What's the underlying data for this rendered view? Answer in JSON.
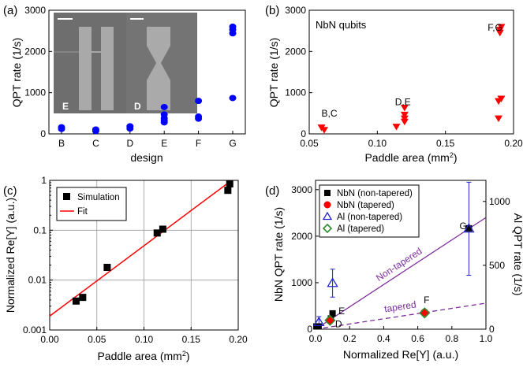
{
  "chart_data": [
    {
      "panel": "(a)",
      "type": "scatter",
      "xlabel": "design",
      "ylabel": "QPT rate (1/s)",
      "categories": [
        "B",
        "C",
        "D",
        "E",
        "F",
        "G"
      ],
      "ylim": [
        0,
        3000
      ],
      "yticks": [
        0,
        1000,
        2000,
        3000
      ],
      "color": "#0000ff",
      "points": [
        {
          "x": "B",
          "y": 120
        },
        {
          "x": "B",
          "y": 160
        },
        {
          "x": "C",
          "y": 70
        },
        {
          "x": "C",
          "y": 105
        },
        {
          "x": "D",
          "y": 130
        },
        {
          "x": "D",
          "y": 185
        },
        {
          "x": "E",
          "y": 280
        },
        {
          "x": "E",
          "y": 330
        },
        {
          "x": "E",
          "y": 380
        },
        {
          "x": "E",
          "y": 470
        },
        {
          "x": "E",
          "y": 650
        },
        {
          "x": "F",
          "y": 370
        },
        {
          "x": "F",
          "y": 420
        },
        {
          "x": "F",
          "y": 800
        },
        {
          "x": "G",
          "y": 870
        },
        {
          "x": "G",
          "y": 2440
        },
        {
          "x": "G",
          "y": 2530
        },
        {
          "x": "G",
          "y": 2600
        }
      ],
      "inset_labels": [
        "E",
        "D"
      ]
    },
    {
      "panel": "(b)",
      "type": "scatter",
      "xlabel": "Paddle area (mm²)",
      "ylabel": "QPT rate (1/s)",
      "annotation_title": "NbN qubits",
      "xlim": [
        0.05,
        0.2
      ],
      "xticks": [
        0.05,
        0.1,
        0.15,
        0.2
      ],
      "ylim": [
        0,
        3000
      ],
      "yticks": [
        0,
        1000,
        2000,
        3000
      ],
      "color": "#ff0000",
      "points": [
        {
          "x": 0.059,
          "y": 160
        },
        {
          "x": 0.061,
          "y": 100
        },
        {
          "x": 0.114,
          "y": 180
        },
        {
          "x": 0.12,
          "y": 300
        },
        {
          "x": 0.12,
          "y": 380
        },
        {
          "x": 0.12,
          "y": 470
        },
        {
          "x": 0.12,
          "y": 640
        },
        {
          "x": 0.189,
          "y": 380
        },
        {
          "x": 0.189,
          "y": 800
        },
        {
          "x": 0.191,
          "y": 860
        },
        {
          "x": 0.19,
          "y": 2460
        },
        {
          "x": 0.19,
          "y": 2530
        },
        {
          "x": 0.191,
          "y": 2600
        }
      ],
      "annotations": [
        {
          "text": "B,C",
          "x": 0.059,
          "y": 420
        },
        {
          "text": "D,E",
          "x": 0.113,
          "y": 700
        },
        {
          "text": "F,G",
          "x": 0.181,
          "y": 2500
        }
      ]
    },
    {
      "panel": "(c)",
      "type": "scatter",
      "xlabel": "Paddle area (mm²)",
      "ylabel": "Normalized Re[Y] (a.u.)",
      "xlim": [
        0.0,
        0.2
      ],
      "xticks": [
        "0.00",
        "0.05",
        "0.10",
        "0.15",
        "0.20"
      ],
      "ylim": [
        0.001,
        1
      ],
      "yscale": "log",
      "yticks": [
        "0.001",
        "0.01",
        "0.1",
        "1"
      ],
      "grid": true,
      "legend": [
        {
          "label": "Simulation",
          "marker": "square",
          "color": "#000000"
        },
        {
          "label": "Fit",
          "marker": "line",
          "color": "#ff0000"
        }
      ],
      "simulation": [
        {
          "x": 0.028,
          "y": 0.0038
        },
        {
          "x": 0.035,
          "y": 0.0045
        },
        {
          "x": 0.061,
          "y": 0.018
        },
        {
          "x": 0.114,
          "y": 0.088
        },
        {
          "x": 0.12,
          "y": 0.105
        },
        {
          "x": 0.189,
          "y": 0.63
        },
        {
          "x": 0.191,
          "y": 0.85
        }
      ],
      "fit": [
        {
          "x": 0.0,
          "y": 0.0019
        },
        {
          "x": 0.193,
          "y": 1.0
        }
      ]
    },
    {
      "panel": "(d)",
      "type": "scatter",
      "xlabel": "Normalized Re[Y] (a.u.)",
      "ylabel": "NbN QPT rate (1/s)",
      "y2label": "Al QPT rate (1/s)",
      "xlim": [
        0.0,
        1.0
      ],
      "xticks": [
        "0.0",
        "0.2",
        "0.4",
        "0.6",
        "0.8",
        "1.0"
      ],
      "ylim": [
        0,
        3200
      ],
      "yticks": [
        0,
        1000,
        2000,
        3000
      ],
      "y2lim": [
        0,
        1165
      ],
      "y2ticks": [
        0,
        500,
        1000
      ],
      "legend": [
        {
          "label": "NbN (non-tapered)",
          "marker": "square",
          "color": "#000000"
        },
        {
          "label": "NbN (tapered)",
          "marker": "circle",
          "color": "#ff0000"
        },
        {
          "label": "Al (non-tapered)",
          "marker": "triangle-open",
          "color": "#2222cc"
        },
        {
          "label": "Al (tapered)",
          "marker": "diamond-open",
          "color": "#2e8b2e"
        }
      ],
      "series": [
        {
          "name": "NbN (non-tapered)",
          "points": [
            {
              "x": 0.005,
              "y": 60
            },
            {
              "x": 0.018,
              "y": 60
            },
            {
              "x": 0.09,
              "y": 230
            },
            {
              "x": 0.1,
              "y": 340
            },
            {
              "x": 0.9,
              "y": 2170
            }
          ]
        },
        {
          "name": "NbN (tapered)",
          "points": [
            {
              "x": 0.085,
              "y": 190
            },
            {
              "x": 0.64,
              "y": 360
            }
          ]
        },
        {
          "name": "Al (non-tapered)",
          "points": [
            {
              "x": 0.02,
              "y": 150,
              "err": 120
            },
            {
              "x": 0.1,
              "y": 990,
              "err": 300
            },
            {
              "x": 0.9,
              "y": 2160,
              "err": 1000
            }
          ]
        },
        {
          "name": "Al (tapered)",
          "points": [
            {
              "x": 0.085,
              "y": 190
            },
            {
              "x": 0.64,
              "y": 350
            }
          ]
        }
      ],
      "lines": [
        {
          "label": "Non-tapered",
          "color": "#7b2d9b",
          "style": "solid",
          "from": {
            "x": 0.0,
            "y": 0
          },
          "to": {
            "x": 1.0,
            "y": 2400
          }
        },
        {
          "label": "tapered",
          "color": "#7b2d9b",
          "style": "dashed",
          "from": {
            "x": 0.0,
            "y": 0
          },
          "to": {
            "x": 1.0,
            "y": 560
          }
        }
      ],
      "annotations": [
        {
          "text": "G",
          "x": 0.845,
          "y": 2150
        },
        {
          "text": "E",
          "x": 0.135,
          "y": 320
        },
        {
          "text": "F",
          "x": 0.635,
          "y": 560
        },
        {
          "text": "D",
          "x": 0.115,
          "y": 40
        }
      ]
    }
  ]
}
